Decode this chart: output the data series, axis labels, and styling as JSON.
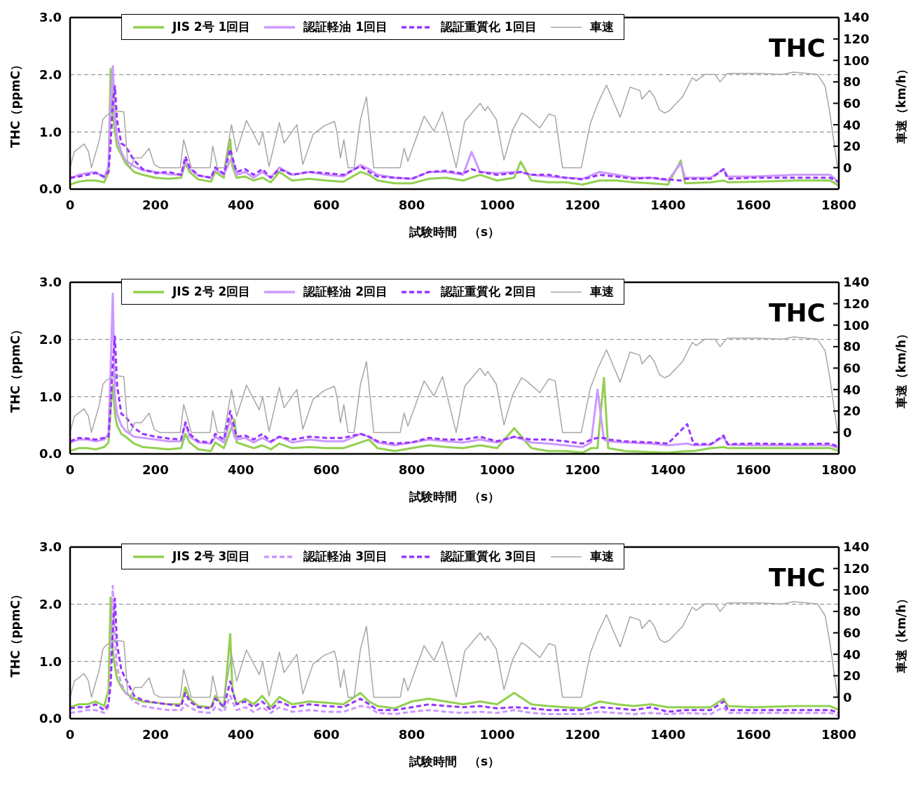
{
  "chart_data": [
    {
      "type": "line",
      "xlabel": "試験時間　（s）",
      "ylabel": "THC（ppmC）",
      "y2label": "車速（km/h）",
      "annotations": [
        "THC"
      ],
      "legend": "top",
      "grid": "y",
      "xlim": [
        0,
        1800
      ],
      "xticks": [
        0,
        200,
        400,
        600,
        800,
        1000,
        1200,
        1400,
        1600,
        1800
      ],
      "ylim": [
        0,
        3
      ],
      "yticks": [
        {
          "value": 0,
          "label": "0.0"
        },
        {
          "value": 1,
          "label": "1.0"
        },
        {
          "value": 2,
          "label": "2.0"
        },
        {
          "value": 3,
          "label": "3.0"
        }
      ],
      "y2lim": [
        -20,
        140
      ],
      "y2ticks": [
        0,
        20,
        40,
        60,
        80,
        100,
        120,
        140
      ],
      "x": [
        0,
        20,
        40,
        60,
        80,
        90,
        95,
        100,
        105,
        110,
        120,
        130,
        150,
        170,
        200,
        230,
        260,
        270,
        280,
        300,
        330,
        340,
        360,
        375,
        380,
        390,
        410,
        430,
        450,
        470,
        490,
        520,
        560,
        600,
        640,
        680,
        700,
        720,
        760,
        800,
        840,
        880,
        920,
        940,
        960,
        1000,
        1040,
        1055,
        1080,
        1120,
        1160,
        1200,
        1240,
        1280,
        1320,
        1360,
        1400,
        1430,
        1440,
        1500,
        1530,
        1540,
        1600,
        1700,
        1780,
        1800
      ],
      "series": [
        {
          "name": "JIS 2号 1回目",
          "color": "#92d050",
          "line_style": "solid",
          "values": [
            0.08,
            0.13,
            0.15,
            0.15,
            0.12,
            0.3,
            2.1,
            1.3,
            1.0,
            0.75,
            0.6,
            0.45,
            0.3,
            0.25,
            0.2,
            0.18,
            0.2,
            0.45,
            0.3,
            0.17,
            0.13,
            0.3,
            0.2,
            0.87,
            0.4,
            0.2,
            0.22,
            0.15,
            0.2,
            0.12,
            0.3,
            0.15,
            0.18,
            0.15,
            0.13,
            0.3,
            0.25,
            0.15,
            0.1,
            0.1,
            0.18,
            0.2,
            0.15,
            0.2,
            0.25,
            0.15,
            0.2,
            0.48,
            0.15,
            0.12,
            0.12,
            0.08,
            0.15,
            0.15,
            0.12,
            0.1,
            0.08,
            0.5,
            0.1,
            0.12,
            0.15,
            0.12,
            0.13,
            0.15,
            0.15,
            0.06
          ]
        },
        {
          "name": "認証軽油 1回目",
          "color": "#cc99ff",
          "line_style": "solid",
          "values": [
            0.18,
            0.25,
            0.28,
            0.3,
            0.2,
            0.4,
            1.5,
            2.15,
            1.3,
            0.9,
            0.65,
            0.5,
            0.4,
            0.33,
            0.3,
            0.26,
            0.25,
            0.5,
            0.35,
            0.24,
            0.2,
            0.35,
            0.25,
            0.5,
            0.55,
            0.25,
            0.3,
            0.2,
            0.3,
            0.2,
            0.38,
            0.25,
            0.3,
            0.25,
            0.22,
            0.42,
            0.35,
            0.25,
            0.2,
            0.18,
            0.3,
            0.3,
            0.25,
            0.65,
            0.3,
            0.28,
            0.3,
            0.3,
            0.25,
            0.22,
            0.2,
            0.18,
            0.3,
            0.25,
            0.2,
            0.2,
            0.15,
            0.45,
            0.2,
            0.2,
            0.35,
            0.22,
            0.22,
            0.25,
            0.25,
            0.12
          ]
        },
        {
          "name": "認証重質化 1回目",
          "color": "#9933ff",
          "line_style": "dashed",
          "values": [
            0.2,
            0.22,
            0.25,
            0.28,
            0.22,
            0.3,
            0.8,
            1.5,
            1.8,
            1.2,
            0.8,
            0.75,
            0.5,
            0.35,
            0.28,
            0.3,
            0.25,
            0.57,
            0.38,
            0.24,
            0.2,
            0.38,
            0.27,
            0.7,
            0.55,
            0.3,
            0.35,
            0.25,
            0.35,
            0.2,
            0.35,
            0.25,
            0.3,
            0.28,
            0.25,
            0.4,
            0.3,
            0.22,
            0.2,
            0.18,
            0.3,
            0.32,
            0.27,
            0.35,
            0.3,
            0.25,
            0.28,
            0.3,
            0.25,
            0.25,
            0.2,
            0.17,
            0.25,
            0.22,
            0.18,
            0.2,
            0.17,
            0.15,
            0.18,
            0.18,
            0.35,
            0.18,
            0.2,
            0.2,
            0.2,
            0.12
          ]
        },
        {
          "name": "車速",
          "color": "#a6a6a6",
          "axis": "y2",
          "line_style": "solid",
          "x": [
            0,
            10,
            33,
            43,
            50,
            68,
            77,
            86,
            108,
            126,
            135,
            141,
            151,
            167,
            185,
            197,
            210,
            258,
            266,
            284,
            328,
            334,
            345,
            361,
            378,
            390,
            413,
            443,
            451,
            466,
            490,
            501,
            531,
            545,
            569,
            595,
            619,
            625,
            633,
            641,
            651,
            665,
            680,
            694,
            711,
            773,
            782,
            791,
            829,
            852,
            872,
            904,
            924,
            960,
            972,
            978,
            998,
            1016,
            1036,
            1057,
            1069,
            1100,
            1121,
            1136,
            1153,
            1197,
            1218,
            1236,
            1256,
            1288,
            1311,
            1334,
            1339,
            1357,
            1368,
            1380,
            1392,
            1403,
            1434,
            1457,
            1466,
            1487,
            1510,
            1522,
            1539,
            1612,
            1667,
            1694,
            1750,
            1768,
            1779,
            1797,
            1800
          ],
          "values": [
            0,
            15,
            22,
            15,
            0,
            25,
            45,
            49,
            53,
            52,
            3,
            0,
            9,
            9,
            18,
            3,
            0,
            0,
            26,
            0,
            0,
            20,
            0,
            0,
            40,
            15,
            44,
            21,
            33,
            1,
            42,
            23,
            40,
            3,
            31,
            39,
            43,
            33,
            9,
            26,
            0,
            0,
            45,
            66,
            0,
            0,
            18,
            6,
            48,
            34,
            52,
            0,
            43,
            60,
            53,
            57,
            45,
            7,
            35,
            51,
            48,
            37,
            50,
            48,
            0,
            0,
            41,
            60,
            77,
            47,
            75,
            72,
            64,
            72,
            66,
            54,
            51,
            53,
            66,
            84,
            81,
            87,
            87,
            80,
            88,
            88,
            87,
            89,
            87,
            76,
            51,
            0,
            0
          ]
        }
      ]
    },
    {
      "type": "line",
      "xlabel": "試験時間　（s）",
      "ylabel": "THC（ppmC）",
      "y2label": "車速（km/h）",
      "annotations": [
        "THC"
      ],
      "legend": "top",
      "grid": "y",
      "xlim": [
        0,
        1800
      ],
      "xticks": [
        0,
        200,
        400,
        600,
        800,
        1000,
        1200,
        1400,
        1600,
        1800
      ],
      "ylim": [
        0,
        3
      ],
      "yticks": [
        {
          "value": 0,
          "label": "0.0"
        },
        {
          "value": 1,
          "label": "1.0"
        },
        {
          "value": 2,
          "label": "2.0"
        },
        {
          "value": 3,
          "label": "3.0"
        }
      ],
      "y2lim": [
        -20,
        140
      ],
      "y2ticks": [
        0,
        20,
        40,
        60,
        80,
        100,
        120,
        140
      ],
      "x": [
        0,
        20,
        40,
        60,
        80,
        90,
        95,
        100,
        105,
        110,
        120,
        130,
        150,
        170,
        200,
        230,
        260,
        270,
        280,
        300,
        330,
        340,
        360,
        375,
        385,
        390,
        410,
        430,
        450,
        470,
        490,
        520,
        560,
        600,
        640,
        680,
        700,
        720,
        760,
        800,
        840,
        880,
        920,
        960,
        1000,
        1040,
        1080,
        1120,
        1160,
        1200,
        1220,
        1235,
        1250,
        1260,
        1300,
        1360,
        1400,
        1445,
        1460,
        1500,
        1530,
        1540,
        1600,
        1700,
        1780,
        1800
      ],
      "series": [
        {
          "name": "JIS 2号 2回目",
          "color": "#92d050",
          "line_style": "solid",
          "values": [
            0.05,
            0.1,
            0.1,
            0.08,
            0.12,
            0.2,
            0.8,
            1.2,
            0.7,
            0.5,
            0.35,
            0.3,
            0.18,
            0.12,
            0.1,
            0.08,
            0.1,
            0.35,
            0.2,
            0.08,
            0.05,
            0.2,
            0.1,
            0.4,
            0.6,
            0.2,
            0.15,
            0.1,
            0.15,
            0.08,
            0.18,
            0.1,
            0.12,
            0.1,
            0.1,
            0.2,
            0.25,
            0.1,
            0.05,
            0.1,
            0.15,
            0.12,
            0.1,
            0.15,
            0.1,
            0.45,
            0.1,
            0.05,
            0.05,
            0.02,
            0.1,
            0.1,
            1.33,
            0.1,
            0.05,
            0.03,
            0.02,
            0.05,
            0.05,
            0.1,
            0.12,
            0.1,
            0.1,
            0.1,
            0.1,
            0.05
          ]
        },
        {
          "name": "認証軽油 2回目",
          "color": "#cc99ff",
          "line_style": "solid",
          "values": [
            0.2,
            0.25,
            0.25,
            0.22,
            0.25,
            0.35,
            1.5,
            2.8,
            1.0,
            0.7,
            0.5,
            0.4,
            0.3,
            0.28,
            0.25,
            0.22,
            0.22,
            0.55,
            0.3,
            0.2,
            0.18,
            0.3,
            0.2,
            0.6,
            0.3,
            0.25,
            0.28,
            0.2,
            0.28,
            0.2,
            0.3,
            0.2,
            0.25,
            0.22,
            0.22,
            0.35,
            0.3,
            0.2,
            0.15,
            0.2,
            0.25,
            0.22,
            0.2,
            0.25,
            0.2,
            0.3,
            0.2,
            0.18,
            0.15,
            0.12,
            0.2,
            1.12,
            0.25,
            0.22,
            0.2,
            0.18,
            0.15,
            0.18,
            0.15,
            0.16,
            0.3,
            0.16,
            0.15,
            0.15,
            0.15,
            0.1
          ]
        },
        {
          "name": "認証重質化 2回目",
          "color": "#9933ff",
          "line_style": "dashed",
          "values": [
            0.22,
            0.28,
            0.27,
            0.25,
            0.28,
            0.3,
            0.8,
            1.6,
            2.05,
            1.2,
            0.7,
            0.65,
            0.45,
            0.35,
            0.3,
            0.27,
            0.25,
            0.55,
            0.35,
            0.22,
            0.2,
            0.35,
            0.25,
            0.75,
            0.45,
            0.3,
            0.32,
            0.25,
            0.35,
            0.22,
            0.3,
            0.25,
            0.3,
            0.28,
            0.28,
            0.35,
            0.3,
            0.22,
            0.18,
            0.2,
            0.28,
            0.25,
            0.25,
            0.3,
            0.22,
            0.3,
            0.25,
            0.25,
            0.22,
            0.18,
            0.25,
            0.28,
            0.28,
            0.25,
            0.22,
            0.2,
            0.18,
            0.52,
            0.17,
            0.17,
            0.32,
            0.17,
            0.18,
            0.17,
            0.18,
            0.12
          ]
        },
        {
          "name": "車速",
          "color": "#a6a6a6",
          "axis": "y2",
          "line_style": "solid",
          "x": [
            0,
            10,
            33,
            43,
            50,
            68,
            77,
            86,
            108,
            126,
            135,
            141,
            151,
            167,
            185,
            197,
            210,
            258,
            266,
            284,
            328,
            334,
            345,
            361,
            378,
            390,
            413,
            443,
            451,
            466,
            490,
            501,
            531,
            545,
            569,
            595,
            619,
            625,
            633,
            641,
            651,
            665,
            680,
            694,
            711,
            773,
            782,
            791,
            829,
            852,
            872,
            904,
            924,
            960,
            972,
            978,
            998,
            1016,
            1036,
            1057,
            1069,
            1100,
            1121,
            1136,
            1153,
            1197,
            1218,
            1236,
            1256,
            1288,
            1311,
            1334,
            1339,
            1357,
            1368,
            1380,
            1392,
            1403,
            1434,
            1457,
            1466,
            1487,
            1510,
            1522,
            1539,
            1612,
            1667,
            1694,
            1750,
            1768,
            1779,
            1797,
            1800
          ],
          "values": [
            0,
            15,
            22,
            15,
            0,
            25,
            45,
            49,
            53,
            52,
            3,
            0,
            9,
            9,
            18,
            3,
            0,
            0,
            26,
            0,
            0,
            20,
            0,
            0,
            40,
            15,
            44,
            21,
            33,
            1,
            42,
            23,
            40,
            3,
            31,
            39,
            43,
            33,
            9,
            26,
            0,
            0,
            45,
            66,
            0,
            0,
            18,
            6,
            48,
            34,
            52,
            0,
            43,
            60,
            53,
            57,
            45,
            7,
            35,
            51,
            48,
            37,
            50,
            48,
            0,
            0,
            41,
            60,
            77,
            47,
            75,
            72,
            64,
            72,
            66,
            54,
            51,
            53,
            66,
            84,
            81,
            87,
            87,
            80,
            88,
            88,
            87,
            89,
            87,
            76,
            51,
            0,
            0
          ]
        }
      ]
    },
    {
      "type": "line",
      "xlabel": "試験時間　（s）",
      "ylabel": "THC（ppmC）",
      "y2label": "車速（km/h）",
      "annotations": [
        "THC"
      ],
      "legend": "top",
      "grid": "y",
      "xlim": [
        0,
        1800
      ],
      "xticks": [
        0,
        200,
        400,
        600,
        800,
        1000,
        1200,
        1400,
        1600,
        1800
      ],
      "ylim": [
        0,
        3
      ],
      "yticks": [
        {
          "value": 0,
          "label": "0.0"
        },
        {
          "value": 1,
          "label": "1.0"
        },
        {
          "value": 2,
          "label": "2.0"
        },
        {
          "value": 3,
          "label": "3.0"
        }
      ],
      "y2lim": [
        -20,
        140
      ],
      "y2ticks": [
        0,
        20,
        40,
        60,
        80,
        100,
        120,
        140
      ],
      "x": [
        0,
        20,
        40,
        60,
        80,
        90,
        95,
        100,
        105,
        110,
        120,
        130,
        150,
        170,
        200,
        230,
        260,
        270,
        280,
        300,
        330,
        340,
        360,
        375,
        380,
        390,
        410,
        430,
        450,
        470,
        490,
        520,
        560,
        600,
        640,
        680,
        700,
        720,
        760,
        800,
        840,
        880,
        920,
        960,
        1000,
        1040,
        1080,
        1120,
        1160,
        1200,
        1240,
        1280,
        1320,
        1360,
        1400,
        1440,
        1500,
        1530,
        1540,
        1600,
        1700,
        1780,
        1800
      ],
      "series": [
        {
          "name": "JIS 2号 3回目",
          "color": "#92d050",
          "line_style": "solid",
          "values": [
            0.2,
            0.25,
            0.25,
            0.3,
            0.22,
            0.5,
            2.12,
            1.2,
            0.9,
            0.7,
            0.55,
            0.45,
            0.35,
            0.3,
            0.28,
            0.25,
            0.25,
            0.55,
            0.35,
            0.22,
            0.2,
            0.4,
            0.2,
            1.48,
            0.5,
            0.25,
            0.35,
            0.25,
            0.4,
            0.2,
            0.38,
            0.25,
            0.3,
            0.28,
            0.25,
            0.45,
            0.3,
            0.22,
            0.18,
            0.3,
            0.35,
            0.3,
            0.25,
            0.3,
            0.25,
            0.45,
            0.25,
            0.22,
            0.2,
            0.18,
            0.3,
            0.25,
            0.22,
            0.25,
            0.2,
            0.2,
            0.2,
            0.35,
            0.22,
            0.2,
            0.22,
            0.22,
            0.15
          ]
        },
        {
          "name": "認証軽油 3回目",
          "color": "#cc99ff",
          "line_style": "dashed",
          "values": [
            0.1,
            0.12,
            0.15,
            0.15,
            0.1,
            0.2,
            0.8,
            2.32,
            1.4,
            0.9,
            0.6,
            0.45,
            0.3,
            0.22,
            0.18,
            0.15,
            0.15,
            0.25,
            0.2,
            0.12,
            0.1,
            0.2,
            0.12,
            0.4,
            0.3,
            0.15,
            0.2,
            0.12,
            0.2,
            0.1,
            0.2,
            0.12,
            0.15,
            0.12,
            0.12,
            0.22,
            0.2,
            0.1,
            0.08,
            0.12,
            0.15,
            0.12,
            0.1,
            0.12,
            0.1,
            0.15,
            0.1,
            0.08,
            0.08,
            0.08,
            0.12,
            0.1,
            0.08,
            0.1,
            0.08,
            0.1,
            0.08,
            0.2,
            0.1,
            0.1,
            0.1,
            0.1,
            0.05
          ]
        },
        {
          "name": "認証重質化 3回目",
          "color": "#9933ff",
          "line_style": "dashed",
          "values": [
            0.18,
            0.2,
            0.2,
            0.25,
            0.15,
            0.25,
            0.6,
            1.5,
            2.1,
            1.3,
            0.85,
            0.7,
            0.4,
            0.32,
            0.28,
            0.25,
            0.22,
            0.45,
            0.3,
            0.2,
            0.18,
            0.35,
            0.2,
            0.65,
            0.5,
            0.25,
            0.3,
            0.2,
            0.3,
            0.15,
            0.3,
            0.2,
            0.25,
            0.22,
            0.2,
            0.35,
            0.25,
            0.15,
            0.15,
            0.2,
            0.25,
            0.22,
            0.2,
            0.22,
            0.18,
            0.2,
            0.18,
            0.15,
            0.15,
            0.15,
            0.2,
            0.18,
            0.15,
            0.2,
            0.12,
            0.15,
            0.15,
            0.3,
            0.15,
            0.15,
            0.15,
            0.15,
            0.1
          ]
        },
        {
          "name": "車速",
          "color": "#a6a6a6",
          "axis": "y2",
          "line_style": "solid",
          "x": [
            0,
            10,
            33,
            43,
            50,
            68,
            77,
            86,
            108,
            126,
            135,
            141,
            151,
            167,
            185,
            197,
            210,
            258,
            266,
            284,
            328,
            334,
            345,
            361,
            378,
            390,
            413,
            443,
            451,
            466,
            490,
            501,
            531,
            545,
            569,
            595,
            619,
            625,
            633,
            641,
            651,
            665,
            680,
            694,
            711,
            773,
            782,
            791,
            829,
            852,
            872,
            904,
            924,
            960,
            972,
            978,
            998,
            1016,
            1036,
            1057,
            1069,
            1100,
            1121,
            1136,
            1153,
            1197,
            1218,
            1236,
            1256,
            1288,
            1311,
            1334,
            1339,
            1357,
            1368,
            1380,
            1392,
            1403,
            1434,
            1457,
            1466,
            1487,
            1510,
            1522,
            1539,
            1612,
            1667,
            1694,
            1750,
            1768,
            1779,
            1797,
            1800
          ],
          "values": [
            0,
            15,
            22,
            15,
            0,
            25,
            45,
            49,
            53,
            52,
            3,
            0,
            9,
            9,
            18,
            3,
            0,
            0,
            26,
            0,
            0,
            20,
            0,
            0,
            40,
            15,
            44,
            21,
            33,
            1,
            42,
            23,
            40,
            3,
            31,
            39,
            43,
            33,
            9,
            26,
            0,
            0,
            45,
            66,
            0,
            0,
            18,
            6,
            48,
            34,
            52,
            0,
            43,
            60,
            53,
            57,
            45,
            7,
            35,
            51,
            48,
            37,
            50,
            48,
            0,
            0,
            41,
            60,
            77,
            47,
            75,
            72,
            64,
            72,
            66,
            54,
            51,
            53,
            66,
            84,
            81,
            87,
            87,
            80,
            88,
            88,
            87,
            89,
            87,
            76,
            51,
            0,
            0
          ]
        }
      ]
    }
  ]
}
